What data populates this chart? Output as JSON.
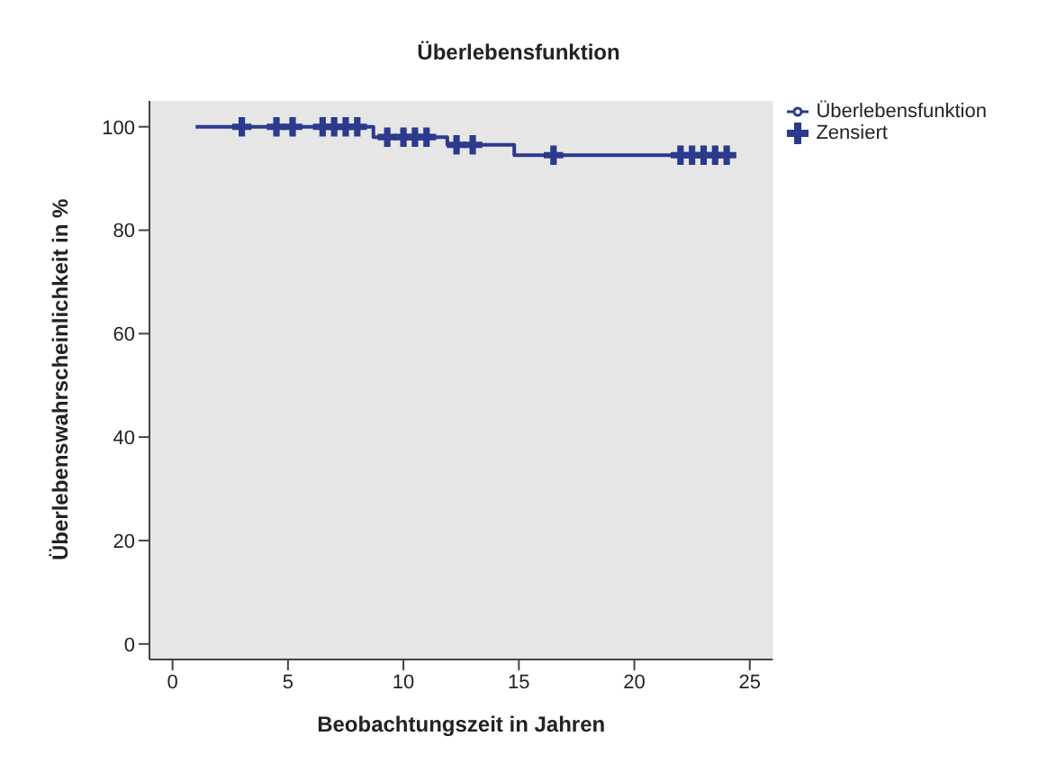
{
  "chart_data": {
    "type": "step",
    "title": "Überlebensfunktion",
    "xlabel": "Beobachtungszeit in Jahren",
    "ylabel": "Überlebenswahrscheinlichkeit in %",
    "xlim": [
      -1,
      26
    ],
    "xticks": [
      0,
      5,
      10,
      15,
      20,
      25
    ],
    "ylim": [
      -3,
      105
    ],
    "yticks": [
      0,
      20,
      40,
      60,
      80,
      100
    ],
    "grid": false,
    "legend": "top right",
    "series": [
      {
        "name": "Überlebensfunktion",
        "color": "#2b3a8c",
        "marker": "none",
        "line_style": "solid",
        "x": [
          1,
          8.7,
          11.9,
          14.8,
          24
        ],
        "values": [
          100,
          98,
          96.5,
          94.5,
          94.5
        ]
      },
      {
        "name": "Zensiert",
        "type": "scatter",
        "color": "#2b3a8c",
        "marker": "cross",
        "x": [
          3,
          4.5,
          5.2,
          6.5,
          7,
          7.5,
          8,
          9.3,
          10,
          10.5,
          11,
          12.3,
          13,
          16.5,
          22,
          22.5,
          23,
          23.5,
          24
        ],
        "values": [
          100,
          100,
          100,
          100,
          100,
          100,
          100,
          98,
          98,
          98,
          98,
          96.5,
          96.5,
          94.5,
          94.5,
          94.5,
          94.5,
          94.5,
          94.5
        ]
      }
    ]
  }
}
